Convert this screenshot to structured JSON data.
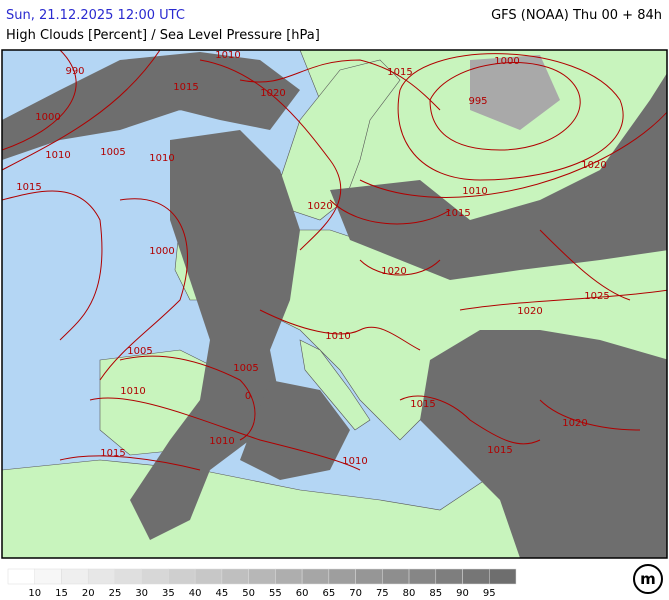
{
  "header": {
    "datetime": "Sun, 21.12.2025 12:00 UTC",
    "model": "GFS (NOAA) Thu 00 + 84h",
    "title": "High Clouds [Percent] / Sea Level Pressure [hPa]"
  },
  "map": {
    "isobar_labels": [
      "990",
      "1010",
      "1015",
      "1020",
      "1015",
      "1000",
      "995",
      "1000",
      "1010",
      "1005",
      "1010",
      "1015",
      "1020",
      "1010",
      "1015",
      "1020",
      "1000",
      "1020",
      "1025",
      "1020",
      "1010",
      "1005",
      "1005",
      "1010",
      "0",
      "1015",
      "1010",
      "1020",
      "1015",
      "1015",
      "1010"
    ]
  },
  "legend": {
    "labels": [
      10,
      15,
      20,
      25,
      30,
      35,
      40,
      45,
      50,
      55,
      60,
      65,
      70,
      75,
      80,
      85,
      90,
      95
    ]
  }
}
